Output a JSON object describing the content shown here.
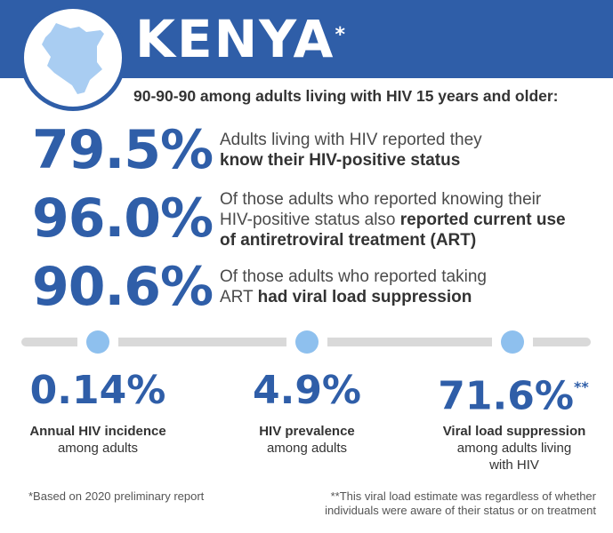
{
  "header": {
    "country": "KENYA",
    "asterisk": "*"
  },
  "subtitle": "90-90-90 among adults living with HIV 15 years and older:",
  "targets": [
    {
      "value": "79.5%",
      "line1": "Adults living with HIV reported they",
      "line2_bold": "know their HIV-positive status"
    },
    {
      "value": "96.0%",
      "line1": "Of those adults who reported knowing their",
      "line2_pre": "HIV-positive status also ",
      "line2_bold": "reported current use",
      "line3_bold": "of antiretroviral treatment (ART)"
    },
    {
      "value": "90.6%",
      "line1": "Of those adults who reported taking",
      "line2_pre": "ART ",
      "line2_bold": "had viral load suppression"
    }
  ],
  "stats": [
    {
      "value": "0.14%",
      "label_bold": "Annual HIV incidence",
      "label": "among adults"
    },
    {
      "value": "4.9%",
      "label_bold": "HIV prevalence",
      "label": "among adults"
    },
    {
      "value": "71.6%",
      "marker": "**",
      "label_bold": "Viral load suppression",
      "label": "among adults living",
      "label2": "with HIV"
    }
  ],
  "footnotes": {
    "left": "*Based on 2020 preliminary report",
    "right_line1": "**This viral load estimate was regardless of whether",
    "right_line2": "individuals were aware of their status or on treatment"
  },
  "colors": {
    "brand": "#2f5ea8",
    "dot": "#8ec0ee",
    "map": "#a9cdf2"
  },
  "icons": [
    "kenya-map-icon"
  ]
}
